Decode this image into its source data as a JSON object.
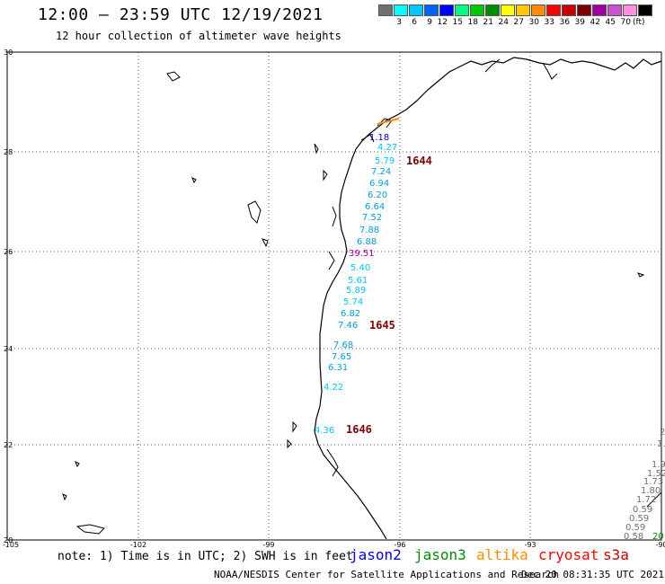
{
  "header": {
    "title": "12:00 – 23:59 UTC 12/19/2021",
    "subtitle": "12 hour collection of altimeter wave heights"
  },
  "color_scale": {
    "unit": "(ft)",
    "swatches": [
      {
        "color": "#707070",
        "label": ""
      },
      {
        "color": "#00ffff",
        "label": "3"
      },
      {
        "color": "#00c8ff",
        "label": "6"
      },
      {
        "color": "#0064ff",
        "label": "9"
      },
      {
        "color": "#0000ff",
        "label": "12"
      },
      {
        "color": "#00ff80",
        "label": "15"
      },
      {
        "color": "#00c800",
        "label": "18"
      },
      {
        "color": "#008c00",
        "label": "21"
      },
      {
        "color": "#ffff00",
        "label": "24"
      },
      {
        "color": "#ffc800",
        "label": "27"
      },
      {
        "color": "#ff8c00",
        "label": "30"
      },
      {
        "color": "#ff0000",
        "label": "33"
      },
      {
        "color": "#c80000",
        "label": "36"
      },
      {
        "color": "#800000",
        "label": "39"
      },
      {
        "color": "#a000a0",
        "label": "42"
      },
      {
        "color": "#d050d0",
        "label": "45"
      },
      {
        "color": "#ff90e0",
        "label": "70"
      },
      {
        "color": "#000000",
        "label": ""
      }
    ]
  },
  "map": {
    "lat_labels": [
      "30",
      "28",
      "26",
      "24",
      "22",
      "20"
    ],
    "lon_labels": [
      "-105",
      "-102",
      "-99",
      "-96",
      "-93",
      "-90"
    ],
    "track_times": [
      {
        "text": "1644",
        "color": "#800000"
      },
      {
        "text": "1645",
        "color": "#800000"
      },
      {
        "text": "1646",
        "color": "#800000"
      }
    ],
    "wave_labels": [
      {
        "text": "1.18",
        "color": "#0000c8"
      },
      {
        "text": "4.27",
        "color": "#00c8ff"
      },
      {
        "text": "5.79",
        "color": "#00c8ff"
      },
      {
        "text": "7.24",
        "color": "#00a0d8"
      },
      {
        "text": "6.94",
        "color": "#00a0d8"
      },
      {
        "text": "6.20",
        "color": "#00a0d8"
      },
      {
        "text": "6.64",
        "color": "#00a0d8"
      },
      {
        "text": "7.52",
        "color": "#00a0d8"
      },
      {
        "text": "7.88",
        "color": "#00a0d8"
      },
      {
        "text": "6.88",
        "color": "#00a0d8"
      },
      {
        "text": "39.51",
        "color": "#a000a0"
      },
      {
        "text": "5.40",
        "color": "#00c8ff"
      },
      {
        "text": "5.61",
        "color": "#00c8ff"
      },
      {
        "text": "5.89",
        "color": "#00c8ff"
      },
      {
        "text": "5.74",
        "color": "#00c8ff"
      },
      {
        "text": "6.82",
        "color": "#00a0d8"
      },
      {
        "text": "7.46",
        "color": "#00a0d8"
      },
      {
        "text": "7.68",
        "color": "#00a0d8"
      },
      {
        "text": "7.65",
        "color": "#00a0d8"
      },
      {
        "text": "6.31",
        "color": "#00a0d8"
      },
      {
        "text": "4.22",
        "color": "#00c8ff"
      },
      {
        "text": "4.36",
        "color": "#00c8ff"
      }
    ],
    "edge_labels": [
      {
        "text": "2",
        "color": "#707070"
      },
      {
        "text": "1.",
        "color": "#707070"
      },
      {
        "text": "1.9",
        "color": "#707070"
      },
      {
        "text": "1.52",
        "color": "#707070"
      },
      {
        "text": "1.73",
        "color": "#707070"
      },
      {
        "text": "1.80",
        "color": "#707070"
      },
      {
        "text": "1.72",
        "color": "#707070"
      },
      {
        "text": "0.59",
        "color": "#707070"
      },
      {
        "text": "0.59",
        "color": "#707070"
      },
      {
        "text": "0.59",
        "color": "#707070"
      },
      {
        "text": "0.58",
        "color": "#707070"
      },
      {
        "text": "20",
        "color": "#008c00"
      }
    ]
  },
  "note": "note: 1) Time is in UTC; 2) SWH is in feet",
  "missions": [
    {
      "name": "jason2",
      "color": "#0000ff"
    },
    {
      "name": "jason3",
      "color": "#008c00"
    },
    {
      "name": "altika",
      "color": "#ff8c00"
    },
    {
      "name": "cryosat",
      "color": "#ff0000"
    },
    {
      "name": "s3a",
      "color": "#c80000"
    }
  ],
  "footer": {
    "credit": "NOAA/NESDIS Center for Satellite Applications and Research",
    "timestamp": "Dec 20 08:31:35 UTC 2021"
  }
}
